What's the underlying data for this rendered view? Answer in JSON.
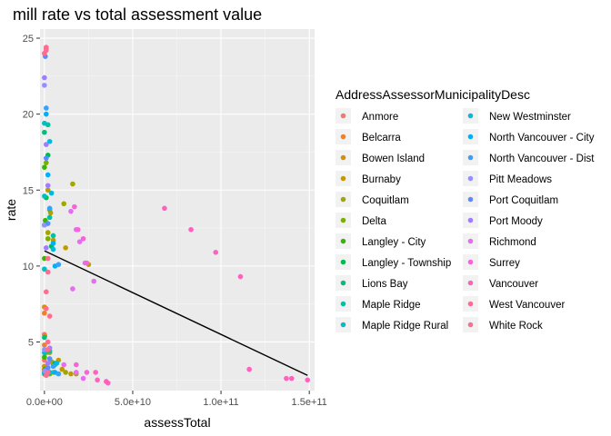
{
  "chart_data": {
    "type": "scatter",
    "title": "mill rate vs total assessment value",
    "xlabel": "assessTotal",
    "ylabel": "rate",
    "xlim": [
      -2500000000.0,
      153000000000.0
    ],
    "ylim": [
      1.8,
      25.6
    ],
    "x_ticks": [
      {
        "value": 0,
        "label": "0.0e+00"
      },
      {
        "value": 50000000000.0,
        "label": "5.0e+10"
      },
      {
        "value": 100000000000.0,
        "label": "1.0e+11"
      },
      {
        "value": 150000000000.0,
        "label": "1.5e+11"
      }
    ],
    "y_ticks": [
      {
        "value": 5,
        "label": "5"
      },
      {
        "value": 10,
        "label": "10"
      },
      {
        "value": 15,
        "label": "15"
      },
      {
        "value": 20,
        "label": "20"
      },
      {
        "value": 25,
        "label": "25"
      }
    ],
    "grid": true,
    "legend_position": "right",
    "legend_title": "AddressAssessorMunicipalityDesc",
    "trend_line": {
      "x": [
        0,
        149000000000.0
      ],
      "y": [
        11.0,
        2.8
      ],
      "color": "#000000"
    },
    "series": [
      {
        "name": "Anmore",
        "color": "#F8766D",
        "points": [
          [
            0,
            5.5
          ],
          [
            0,
            3.8
          ],
          [
            0,
            3.1
          ]
        ]
      },
      {
        "name": "Belcarra",
        "color": "#EA8331",
        "points": [
          [
            0,
            6.9
          ],
          [
            0,
            4.8
          ],
          [
            0,
            3.2
          ]
        ]
      },
      {
        "name": "Bowen Island",
        "color": "#D89000",
        "points": [
          [
            0,
            7.3
          ],
          [
            200000000.0,
            5.4
          ],
          [
            0,
            3.4
          ]
        ]
      },
      {
        "name": "Burnaby",
        "color": "#C09B00",
        "points": [
          [
            2000000000.0,
            15.0
          ],
          [
            3500000000.0,
            13.5
          ],
          [
            5000000000.0,
            11.7
          ],
          [
            12000000000.0,
            11.2
          ],
          [
            25000000000.0,
            10.1
          ],
          [
            8000000000.0,
            3.8
          ],
          [
            15000000000.0,
            2.9
          ],
          [
            3000000000.0,
            4.3
          ],
          [
            10000000000.0,
            3.2
          ],
          [
            5000000000.0,
            3.0
          ]
        ]
      },
      {
        "name": "Coquitlam",
        "color": "#A3A500",
        "points": [
          [
            16000000000.0,
            15.4
          ],
          [
            11000000000.0,
            14.1
          ],
          [
            2000000000.0,
            12.2
          ],
          [
            5000000000.0,
            3.5
          ],
          [
            12000000000.0,
            3.0
          ],
          [
            18000000000.0,
            2.9
          ],
          [
            4000000000.0,
            3.7
          ]
        ]
      },
      {
        "name": "Delta",
        "color": "#7CAE00",
        "points": [
          [
            1000000000.0,
            16.8
          ],
          [
            3000000000.0,
            13.7
          ],
          [
            2000000000.0,
            11.8
          ],
          [
            6000000000.0,
            3.5
          ],
          [
            3000000000.0,
            2.9
          ],
          [
            1000000000.0,
            4.3
          ]
        ]
      },
      {
        "name": "Langley - City",
        "color": "#39B600",
        "points": [
          [
            0,
            16.5
          ],
          [
            500000000.0,
            13.0
          ],
          [
            0,
            10.5
          ],
          [
            0,
            4.0
          ],
          [
            300000000.0,
            3.2
          ]
        ]
      },
      {
        "name": "Langley - Township",
        "color": "#00BB4E",
        "points": [
          [
            2000000000.0,
            17.3
          ],
          [
            1000000000.0,
            14.5
          ],
          [
            4000000000.0,
            11.3
          ],
          [
            6000000000.0,
            3.6
          ],
          [
            2000000000.0,
            3.0
          ]
        ]
      },
      {
        "name": "Lions Bay",
        "color": "#00BF7D",
        "points": [
          [
            0,
            18.8
          ],
          [
            0,
            12.7
          ],
          [
            0,
            5.3
          ],
          [
            0,
            2.9
          ]
        ]
      },
      {
        "name": "Maple Ridge",
        "color": "#00C1A3",
        "points": [
          [
            2000000000.0,
            19.3
          ],
          [
            3000000000.0,
            13.2
          ],
          [
            5000000000.0,
            12.0
          ],
          [
            5000000000.0,
            3.4
          ],
          [
            3000000000.0,
            4.4
          ]
        ]
      },
      {
        "name": "Maple Ridge Rural",
        "color": "#00BFC4",
        "points": [
          [
            0,
            19.4
          ],
          [
            0,
            14.6
          ],
          [
            0,
            9.8
          ],
          [
            0,
            4.3
          ],
          [
            0,
            3.0
          ]
        ]
      },
      {
        "name": "New Westminster",
        "color": "#00BAE0",
        "points": [
          [
            3000000000.0,
            18.2
          ],
          [
            4000000000.0,
            14.8
          ],
          [
            5000000000.0,
            11.1
          ],
          [
            7000000000.0,
            3.6
          ],
          [
            3000000000.0,
            3.0
          ]
        ]
      },
      {
        "name": "North Vancouver - City",
        "color": "#00B0F6",
        "points": [
          [
            1000000000.0,
            20.0
          ],
          [
            2000000000.0,
            16.0
          ],
          [
            5000000000.0,
            11.5
          ],
          [
            6000000000.0,
            10.0
          ],
          [
            6000000000.0,
            3.0
          ]
        ]
      },
      {
        "name": "North Vancouver - Dist",
        "color": "#35A2FF",
        "points": [
          [
            1000000000.0,
            20.4
          ],
          [
            3000000000.0,
            13.8
          ],
          [
            8000000000.0,
            10.1
          ],
          [
            5000000000.0,
            3.4
          ],
          [
            8000000000.0,
            2.9
          ]
        ]
      },
      {
        "name": "Pitt Meadows",
        "color": "#9590FF",
        "points": [
          [
            0,
            21.9
          ],
          [
            0,
            12.7
          ],
          [
            0,
            4.5
          ],
          [
            200000000.0,
            3.1
          ]
        ]
      },
      {
        "name": "Port Coquitlam",
        "color": "#5B8CFF",
        "points": [
          [
            500000000.0,
            23.8
          ],
          [
            1000000000.0,
            17.1
          ],
          [
            2000000000.0,
            12.8
          ],
          [
            3000000000.0,
            3.9
          ],
          [
            2000000000.0,
            3.3
          ]
        ]
      },
      {
        "name": "Port Moody",
        "color": "#A07DFF",
        "points": [
          [
            0,
            22.4
          ],
          [
            1000000000.0,
            18.0
          ],
          [
            2000000000.0,
            15.3
          ],
          [
            1000000000.0,
            11.2
          ],
          [
            3000000000.0,
            4.6
          ],
          [
            2000000000.0,
            3.6
          ]
        ]
      },
      {
        "name": "Richmond",
        "color": "#E76BF3",
        "points": [
          [
            15000000000.0,
            13.6
          ],
          [
            18000000000.0,
            12.4
          ],
          [
            20000000000.0,
            11.6
          ],
          [
            23000000000.0,
            10.2
          ],
          [
            28000000000.0,
            9.0
          ],
          [
            16000000000.0,
            8.5
          ],
          [
            11000000000.0,
            3.5
          ],
          [
            18000000000.0,
            3.0
          ],
          [
            22000000000.0,
            2.6
          ]
        ]
      },
      {
        "name": "Surrey",
        "color": "#FA62DB",
        "points": [
          [
            17000000000.0,
            13.9
          ],
          [
            19000000000.0,
            12.4
          ],
          [
            22000000000.0,
            11.8
          ],
          [
            24000000000.0,
            10.2
          ],
          [
            18000000000.0,
            3.5
          ],
          [
            24000000000.0,
            3.0
          ]
        ]
      },
      {
        "name": "Vancouver",
        "color": "#FF62BC",
        "points": [
          [
            68000000000.0,
            13.8
          ],
          [
            83000000000.0,
            12.4
          ],
          [
            97000000000.0,
            10.9
          ],
          [
            111000000000.0,
            9.3
          ],
          [
            116000000000.0,
            3.2
          ],
          [
            137000000000.0,
            2.6
          ],
          [
            140000000000.0,
            2.6
          ],
          [
            149000000000.0,
            2.5
          ],
          [
            35000000000.0,
            2.4
          ],
          [
            36000000000.0,
            2.3
          ],
          [
            29000000000.0,
            3.0
          ],
          [
            30000000000.0,
            2.5
          ]
        ]
      },
      {
        "name": "West Vancouver",
        "color": "#FF6C91",
        "points": [
          [
            1000000000.0,
            24.4
          ],
          [
            1000000000.0,
            24.2
          ],
          [
            0,
            24.0
          ],
          [
            2000000000.0,
            10.5
          ],
          [
            1000000000.0,
            7.2
          ],
          [
            3000000000.0,
            6.7
          ],
          [
            2000000000.0,
            5.0
          ],
          [
            2000000000.0,
            3.0
          ]
        ]
      },
      {
        "name": "White Rock",
        "color": "#FF6C91",
        "points": [
          [
            1000000000.0,
            24.3
          ],
          [
            2000000000.0,
            9.6
          ],
          [
            1000000000.0,
            8.3
          ],
          [
            2000000000.0,
            4.5
          ],
          [
            1000000000.0,
            2.8
          ]
        ]
      }
    ]
  }
}
